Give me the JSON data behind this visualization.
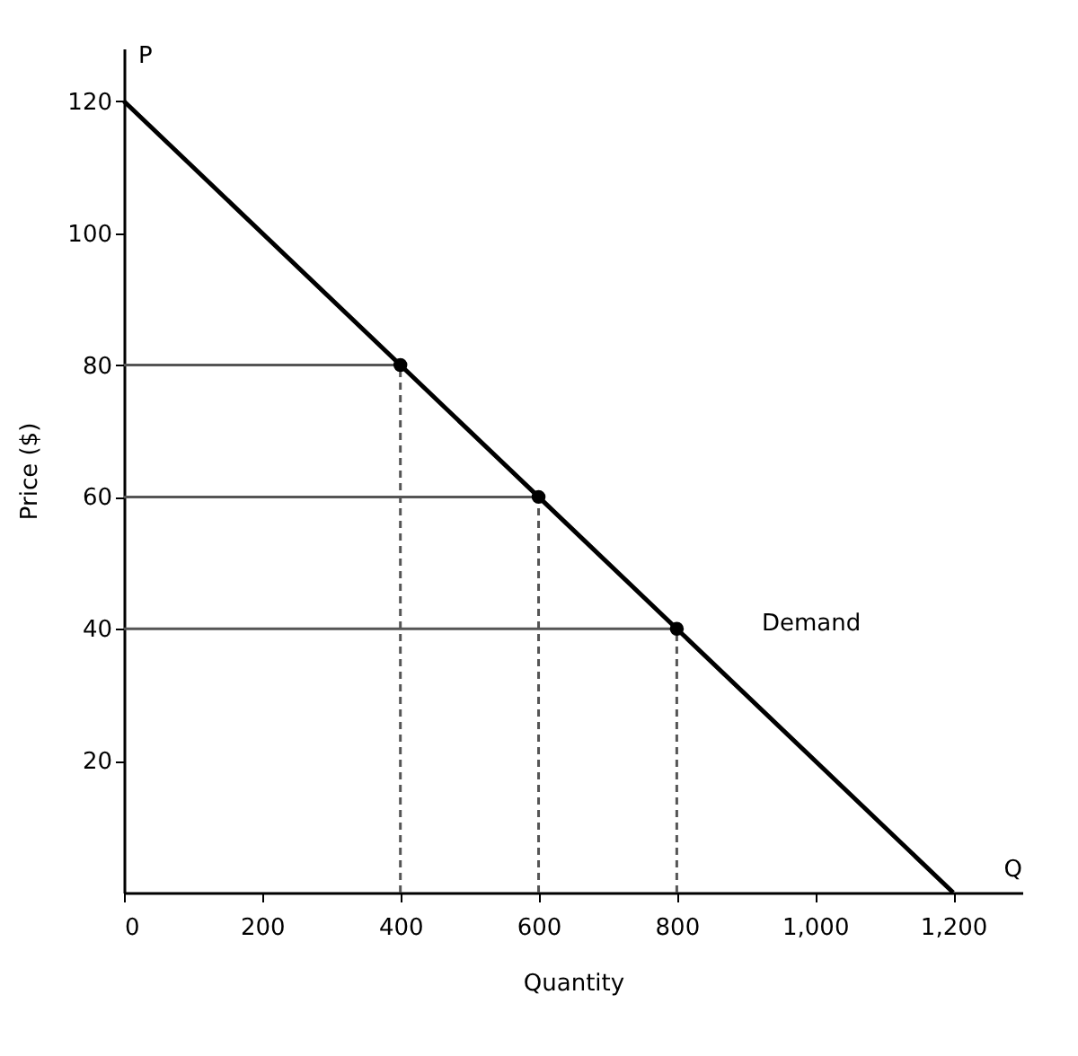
{
  "chart_data": {
    "type": "line",
    "xlabel": "Quantity",
    "ylabel": "Price ($)",
    "xlim": [
      0,
      1300
    ],
    "ylim": [
      0,
      128
    ],
    "xticks": [
      0,
      200,
      400,
      600,
      800,
      {
        "value": 1000,
        "label": "1,000"
      },
      {
        "value": 1200,
        "label": "1,200"
      }
    ],
    "yticks": [
      20,
      40,
      60,
      80,
      100,
      120
    ],
    "series": [
      {
        "color": "#000000",
        "x": [
          0,
          400,
          600,
          800,
          1200
        ],
        "values": [
          120,
          80,
          60,
          40,
          0
        ],
        "marker": "none",
        "line_style": "solid"
      },
      {
        "type": "line",
        "color": "#555555",
        "x": [
          0,
          400
        ],
        "values": [
          80,
          80
        ],
        "marker": "none",
        "line_style": "solid"
      },
      {
        "type": "line",
        "color": "#555555",
        "x": [
          0,
          600
        ],
        "values": [
          60,
          60
        ],
        "marker": "none",
        "line_style": "solid"
      },
      {
        "type": "line",
        "color": "#555555",
        "x": [
          0,
          800
        ],
        "values": [
          40,
          40
        ],
        "marker": "none",
        "line_style": "solid"
      },
      {
        "type": "line",
        "color": "#555555",
        "x": [
          400,
          400
        ],
        "values": [
          0,
          80
        ],
        "marker": "none",
        "line_style": "dashed"
      },
      {
        "type": "line",
        "color": "#555555",
        "x": [
          600,
          600
        ],
        "values": [
          0,
          60
        ],
        "marker": "none",
        "line_style": "dashed"
      },
      {
        "type": "line",
        "color": "#555555",
        "x": [
          800,
          800
        ],
        "values": [
          0,
          40
        ],
        "marker": "none",
        "line_style": "dashed"
      },
      {
        "type": "scatter",
        "color": "#000000",
        "x": [
          400,
          600,
          800
        ],
        "values": [
          80,
          60,
          40
        ],
        "marker": "circle"
      }
    ],
    "annotations": [
      "P",
      "Q",
      "Demand"
    ]
  }
}
